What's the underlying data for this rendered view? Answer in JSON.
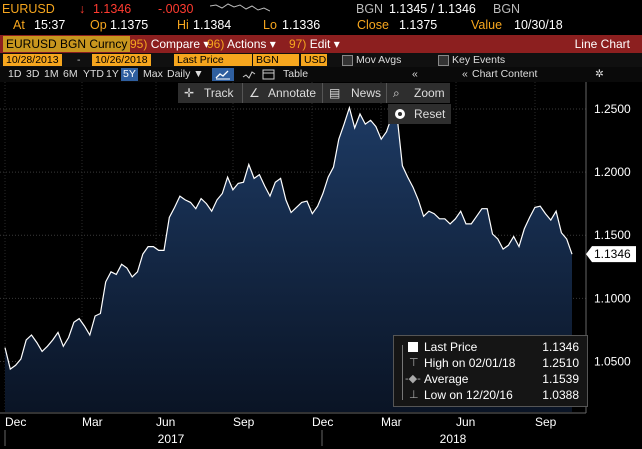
{
  "quote": {
    "ticker": "EURUSD",
    "last_arrow": "↓",
    "last": "1.1346",
    "change": "-.0030",
    "bid_ask_label": "BGN",
    "bid_ask": "1.1345 / 1.1346",
    "bid_ask_src": "BGN",
    "at_label": "At",
    "at": "15:37",
    "open_label": "Op",
    "open": "1.1375",
    "high_label": "Hi",
    "high": "1.1384",
    "low_label": "Lo",
    "low": "1.1336",
    "close_label": "Close",
    "close": "1.1375",
    "value_label": "Value",
    "value_date": "10/30/18"
  },
  "menubar": {
    "security": "EURUSD BGN Curncy",
    "compare_num": "95)",
    "compare": "Compare",
    "actions_num": "96)",
    "actions": "Actions",
    "edit_num": "97)",
    "edit": "Edit",
    "view_title": "Line Chart"
  },
  "daterow": {
    "start": "10/28/2013",
    "end": "10/26/2018",
    "field": "Last Price",
    "source": "BGN",
    "currency": "USD",
    "mov_avgs": "Mov Avgs",
    "key_events": "Key Events"
  },
  "periods": {
    "items": [
      "1D",
      "3D",
      "1M",
      "6M",
      "YTD",
      "1Y",
      "5Y",
      "Max"
    ],
    "selected": "5Y",
    "frequency": "Daily",
    "table": "Table",
    "chart_content": "Chart Content"
  },
  "toolbar": {
    "track": "Track",
    "annotate": "Annotate",
    "news": "News",
    "zoom": "Zoom",
    "reset": "Reset"
  },
  "legend": {
    "last_label": "Last Price",
    "last_value": "1.1346",
    "high_label": "High on 02/01/18",
    "high_value": "1.2510",
    "avg_label": "Average",
    "avg_value": "1.1539",
    "low_label": "Low on 12/20/16",
    "low_value": "1.0388"
  },
  "colors": {
    "accent": "#f6a61e",
    "menubar": "#8c1f1f",
    "area_top": "#1d3a63",
    "area_bottom": "#0a1425",
    "line": "#ffffff"
  },
  "chart_data": {
    "type": "area",
    "ylim": [
      1.01,
      1.265
    ],
    "y_ticks": [
      "1.2500",
      "1.2000",
      "1.1500",
      "1.1000",
      "1.0500"
    ],
    "y_tick_values": [
      1.25,
      1.2,
      1.15,
      1.1,
      1.05
    ],
    "last_label": "1.1346",
    "x_month_labels": [
      "Dec",
      "Mar",
      "Jun",
      "Sep",
      "Dec",
      "Mar",
      "Jun",
      "Sep"
    ],
    "x_year_labels": [
      "2017",
      "2018"
    ],
    "series": [
      {
        "values": [
          1.061,
          1.044,
          1.047,
          1.052,
          1.067,
          1.071,
          1.065,
          1.058,
          1.062,
          1.067,
          1.073,
          1.062,
          1.069,
          1.081,
          1.084,
          1.078,
          1.071,
          1.086,
          1.088,
          1.113,
          1.121,
          1.119,
          1.127,
          1.124,
          1.117,
          1.121,
          1.135,
          1.141,
          1.141,
          1.138,
          1.138,
          1.164,
          1.172,
          1.181,
          1.178,
          1.176,
          1.171,
          1.179,
          1.175,
          1.169,
          1.178,
          1.183,
          1.196,
          1.186,
          1.191,
          1.192,
          1.206,
          1.195,
          1.198,
          1.189,
          1.181,
          1.192,
          1.195,
          1.178,
          1.168,
          1.172,
          1.176,
          1.177,
          1.167,
          1.173,
          1.183,
          1.196,
          1.204,
          1.226,
          1.238,
          1.251,
          1.235,
          1.246,
          1.238,
          1.241,
          1.236,
          1.226,
          1.232,
          1.244,
          1.244,
          1.205,
          1.196,
          1.188,
          1.178,
          1.165,
          1.169,
          1.167,
          1.163,
          1.163,
          1.159,
          1.163,
          1.169,
          1.159,
          1.159,
          1.165,
          1.171,
          1.171,
          1.151,
          1.147,
          1.139,
          1.142,
          1.149,
          1.141,
          1.155,
          1.164,
          1.172,
          1.173,
          1.167,
          1.162,
          1.169,
          1.152,
          1.147,
          1.135
        ]
      }
    ]
  }
}
